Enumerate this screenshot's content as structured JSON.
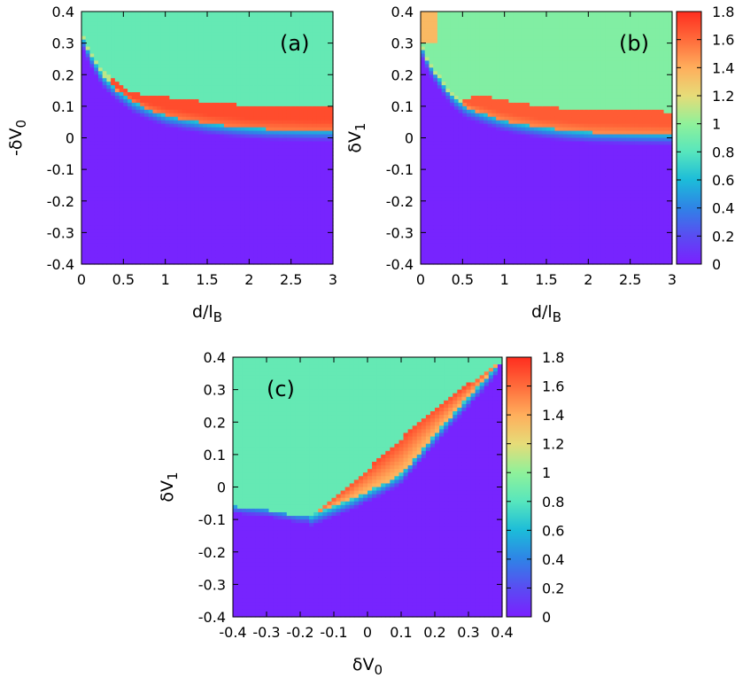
{
  "colorscale": {
    "stops": [
      {
        "v": 0.0,
        "color": "#7a20ff"
      },
      {
        "v": 0.2,
        "color": "#5a4cf2"
      },
      {
        "v": 0.4,
        "color": "#2f83e6"
      },
      {
        "v": 0.6,
        "color": "#1cbcd9"
      },
      {
        "v": 0.8,
        "color": "#57e6bd"
      },
      {
        "v": 1.0,
        "color": "#8ff19a"
      },
      {
        "v": 1.2,
        "color": "#e6dc78"
      },
      {
        "v": 1.4,
        "color": "#ffae5c"
      },
      {
        "v": 1.6,
        "color": "#ff6b3b"
      },
      {
        "v": 1.8,
        "color": "#ff2d1f"
      }
    ],
    "range": [
      0,
      1.8
    ],
    "tick_labels": [
      "0",
      "0.2",
      "0.4",
      "0.6",
      "0.8",
      "1",
      "1.2",
      "1.4",
      "1.6",
      "1.8"
    ]
  },
  "chart_data": [
    {
      "type": "heatmap",
      "panel_label": "(a)",
      "xlabel_base": "d/l",
      "xlabel_sub": "B",
      "ylabel_base": "-δV",
      "ylabel_sub": "0",
      "xlim": [
        0,
        3
      ],
      "ylim": [
        -0.4,
        0.4
      ],
      "x_ticks": [
        "0",
        "0.5",
        "1",
        "1.5",
        "2",
        "2.5",
        "3"
      ],
      "y_ticks": [
        "-0.4",
        "-0.3",
        "-0.2",
        "-0.1",
        "0",
        "0.1",
        "0.2",
        "0.3",
        "0.4"
      ],
      "colorbar": false,
      "region_values": {
        "low": 0.02,
        "high": 0.85,
        "band": 1.7
      },
      "boundary": {
        "x": [
          0.0,
          0.1,
          0.25,
          0.4,
          0.6,
          0.8,
          1.0,
          1.25,
          1.5,
          1.75,
          2.0,
          2.25,
          2.5,
          2.75,
          3.0
        ],
        "y": [
          0.33,
          0.27,
          0.2,
          0.16,
          0.12,
          0.095,
          0.075,
          0.062,
          0.05,
          0.042,
          0.036,
          0.032,
          0.03,
          0.028,
          0.027
        ]
      },
      "band_width": {
        "x": [
          0.0,
          0.3,
          0.6,
          0.8,
          1.0,
          1.5,
          2.0,
          2.5,
          3.0
        ],
        "w": [
          0.0,
          0.01,
          0.02,
          0.035,
          0.05,
          0.058,
          0.062,
          0.064,
          0.065
        ]
      }
    },
    {
      "type": "heatmap",
      "panel_label": "(b)",
      "xlabel_base": "d/l",
      "xlabel_sub": "B",
      "ylabel_base": "δV",
      "ylabel_sub": "1",
      "xlim": [
        0,
        3
      ],
      "ylim": [
        -0.4,
        0.4
      ],
      "x_ticks": [
        "0",
        "0.5",
        "1",
        "1.5",
        "2",
        "2.5",
        "3"
      ],
      "y_ticks": [
        "-0.4",
        "-0.3",
        "-0.2",
        "-0.1",
        "0",
        "0.1",
        "0.2",
        "0.3",
        "0.4"
      ],
      "colorbar": true,
      "region_values": {
        "low": 0.02,
        "high": 0.95,
        "band": 1.65
      },
      "boundary": {
        "x": [
          0.0,
          0.1,
          0.25,
          0.4,
          0.55,
          0.75,
          1.0,
          1.25,
          1.5,
          1.75,
          2.0,
          2.5,
          3.0
        ],
        "y": [
          0.3,
          0.24,
          0.18,
          0.13,
          0.1,
          0.08,
          0.058,
          0.045,
          0.035,
          0.028,
          0.022,
          0.018,
          0.015
        ]
      },
      "band_width": {
        "x": [
          0.0,
          0.45,
          0.6,
          0.8,
          1.0,
          1.5,
          2.0,
          2.5,
          3.0
        ],
        "w": [
          0.0,
          0.0,
          0.03,
          0.05,
          0.055,
          0.058,
          0.06,
          0.062,
          0.063
        ]
      }
    },
    {
      "type": "heatmap",
      "panel_label": "(c)",
      "xlabel_base": "δV",
      "xlabel_sub": "0",
      "ylabel_base": "δV",
      "ylabel_sub": "1",
      "xlim": [
        -0.4,
        0.4
      ],
      "ylim": [
        -0.4,
        0.4
      ],
      "x_ticks": [
        "-0.4",
        "-0.3",
        "-0.2",
        "-0.1",
        "0",
        "0.1",
        "0.2",
        "0.3",
        "0.4"
      ],
      "y_ticks": [
        "-0.4",
        "-0.3",
        "-0.2",
        "-0.1",
        "0",
        "0.1",
        "0.2",
        "0.3",
        "0.4"
      ],
      "colorbar": true,
      "region_values": {
        "low": 0.02,
        "high": 0.85,
        "band": 1.7
      },
      "lower_boundary": {
        "x": [
          -0.4,
          -0.3,
          -0.2,
          -0.17
        ],
        "y": [
          -0.06,
          -0.07,
          -0.09,
          -0.09
        ]
      },
      "wedge_upper": {
        "x": [
          -0.17,
          -0.05,
          0.05,
          0.15,
          0.25,
          0.33,
          0.38
        ],
        "y": [
          -0.09,
          0.01,
          0.1,
          0.2,
          0.28,
          0.34,
          0.38
        ]
      },
      "wedge_lower": {
        "x": [
          -0.17,
          -0.05,
          0.05,
          0.1,
          0.15,
          0.25,
          0.33,
          0.38
        ],
        "y": [
          -0.09,
          -0.04,
          0.01,
          0.04,
          0.1,
          0.22,
          0.31,
          0.37
        ]
      }
    }
  ]
}
